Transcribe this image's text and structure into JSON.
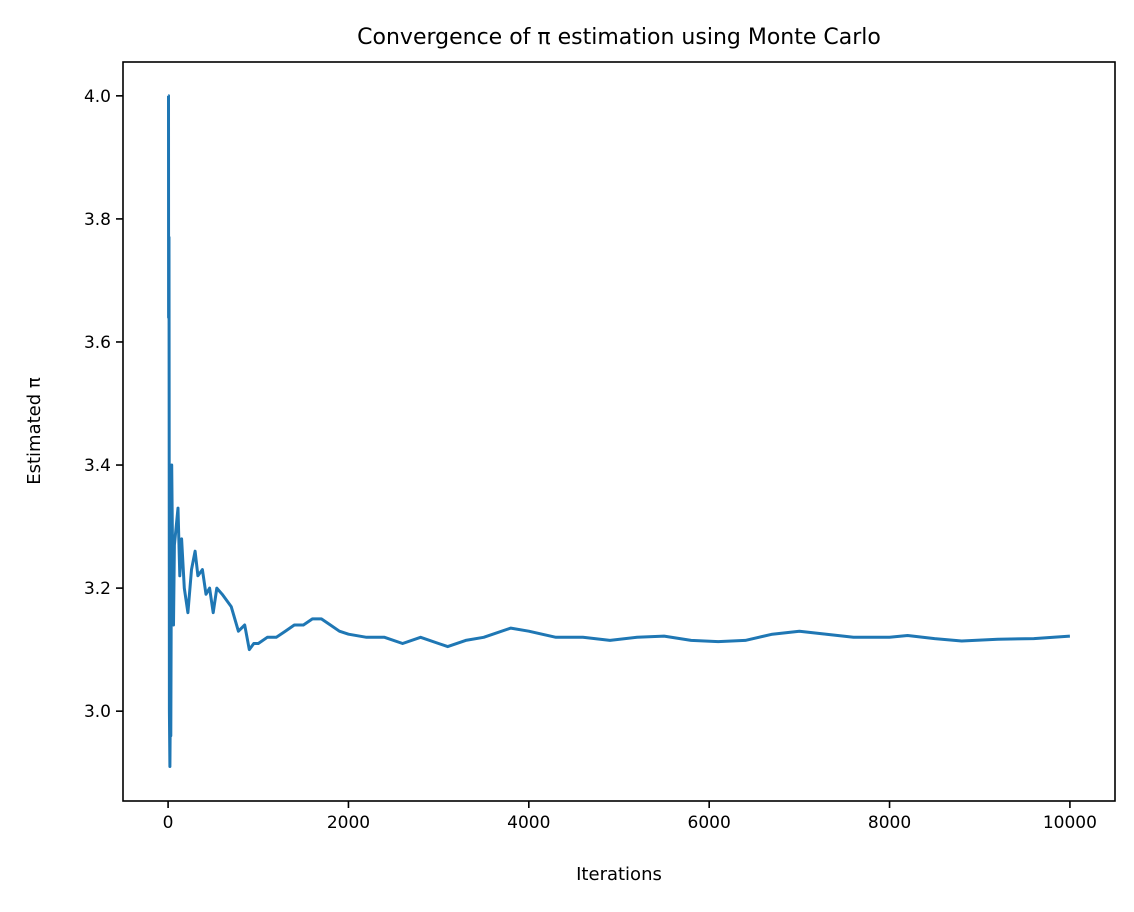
{
  "chart_data": {
    "type": "line",
    "title": "Convergence of π estimation using Monte Carlo",
    "xlabel": "Iterations",
    "ylabel": "Estimated π",
    "xlim": [
      -500,
      10500
    ],
    "ylim": [
      2.854,
      4.055
    ],
    "xticks": [
      0,
      2000,
      4000,
      6000,
      8000,
      10000
    ],
    "yticks": [
      3.0,
      3.2,
      3.4,
      3.6,
      3.8,
      4.0
    ],
    "xtick_labels": [
      "0",
      "2000",
      "4000",
      "6000",
      "8000",
      "10000"
    ],
    "ytick_labels": [
      "3.0",
      "3.2",
      "3.4",
      "3.6",
      "3.8",
      "4.0"
    ],
    "grid": false,
    "legend": "none",
    "series": [
      {
        "color": "#1f77b4",
        "x": [
          1,
          4,
          6,
          10,
          12,
          15,
          20,
          25,
          30,
          40,
          50,
          60,
          70,
          90,
          110,
          130,
          150,
          180,
          220,
          260,
          300,
          330,
          380,
          420,
          460,
          500,
          540,
          600,
          700,
          780,
          850,
          900,
          950,
          1000,
          1100,
          1200,
          1300,
          1400,
          1500,
          1600,
          1700,
          1800,
          1900,
          2000,
          2200,
          2400,
          2600,
          2800,
          3000,
          3100,
          3300,
          3500,
          3800,
          4000,
          4300,
          4600,
          4900,
          5200,
          5500,
          5800,
          6100,
          6400,
          6700,
          7000,
          7300,
          7600,
          8000,
          8200,
          8500,
          8800,
          9200,
          9600,
          10000
        ],
        "y": [
          4.0,
          4.0,
          3.64,
          3.77,
          3.4,
          3.0,
          2.91,
          3.0,
          2.96,
          3.4,
          3.25,
          3.14,
          3.27,
          3.3,
          3.33,
          3.22,
          3.28,
          3.2,
          3.16,
          3.23,
          3.26,
          3.22,
          3.23,
          3.19,
          3.2,
          3.16,
          3.2,
          3.19,
          3.17,
          3.13,
          3.14,
          3.1,
          3.11,
          3.11,
          3.12,
          3.12,
          3.13,
          3.14,
          3.14,
          3.15,
          3.15,
          3.14,
          3.13,
          3.125,
          3.12,
          3.12,
          3.11,
          3.12,
          3.11,
          3.105,
          3.115,
          3.12,
          3.135,
          3.13,
          3.12,
          3.12,
          3.115,
          3.12,
          3.122,
          3.115,
          3.113,
          3.115,
          3.125,
          3.13,
          3.125,
          3.12,
          3.12,
          3.123,
          3.118,
          3.114,
          3.117,
          3.118,
          3.122
        ]
      }
    ]
  }
}
